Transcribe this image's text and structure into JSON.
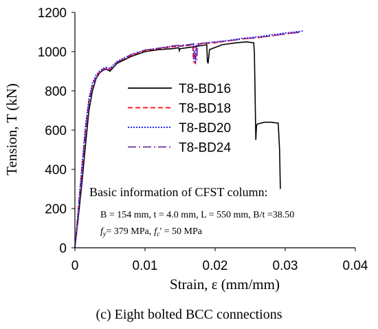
{
  "caption": "(c) Eight bolted BCC connections",
  "chart_data": {
    "type": "line",
    "title": "",
    "xlabel": "Strain, ε (mm/mm)",
    "ylabel": "Tension, T (kN)",
    "xlim": [
      0,
      0.04
    ],
    "ylim": [
      0,
      1200
    ],
    "x_ticks": [
      "0",
      "0.01",
      "0.02",
      "0.03",
      "0.04"
    ],
    "y_ticks": [
      "0",
      "200",
      "400",
      "600",
      "800",
      "1000",
      "1200"
    ],
    "grid": false,
    "legend_position": "center",
    "series": [
      {
        "name": "T8-BD16",
        "color": "#000000",
        "style": "solid",
        "x": [
          0,
          0.0005,
          0.001,
          0.0015,
          0.002,
          0.0025,
          0.003,
          0.0035,
          0.004,
          0.0045,
          0.005,
          0.006,
          0.008,
          0.01,
          0.012,
          0.014,
          0.0148,
          0.0149,
          0.015,
          0.017,
          0.0188,
          0.0189,
          0.019,
          0.0192,
          0.021,
          0.023,
          0.0245,
          0.0255,
          0.0256,
          0.0257,
          0.0258,
          0.0259,
          0.026,
          0.027,
          0.028,
          0.029,
          0.0292,
          0.0293
        ],
        "y": [
          0,
          160,
          330,
          520,
          700,
          800,
          860,
          890,
          905,
          910,
          900,
          940,
          975,
          1000,
          1010,
          1015,
          1020,
          1005,
          1015,
          1025,
          1035,
          950,
          940,
          1010,
          1035,
          1045,
          1050,
          1045,
          1000,
          800,
          550,
          620,
          630,
          640,
          640,
          635,
          500,
          300
        ]
      },
      {
        "name": "T8-BD18",
        "color": "#ff0000",
        "style": "dashed",
        "x": [
          0,
          0.0005,
          0.001,
          0.0015,
          0.002,
          0.0025,
          0.003,
          0.0035,
          0.004,
          0.0045,
          0.005,
          0.006,
          0.008,
          0.01,
          0.012,
          0.014,
          0.016,
          0.0168,
          0.0169,
          0.0172,
          0.0173,
          0.0175,
          0.018,
          0.02,
          0.022,
          0.024,
          0.026,
          0.028,
          0.03,
          0.032
        ],
        "y": [
          0,
          200,
          400,
          600,
          750,
          830,
          870,
          895,
          910,
          915,
          910,
          945,
          980,
          1005,
          1015,
          1025,
          1030,
          1035,
          950,
          940,
          1030,
          1035,
          1040,
          1045,
          1055,
          1065,
          1070,
          1080,
          1090,
          1100
        ]
      },
      {
        "name": "T8-BD20",
        "color": "#0000ff",
        "style": "dotted",
        "x": [
          0,
          0.0005,
          0.001,
          0.0015,
          0.002,
          0.0025,
          0.003,
          0.0035,
          0.004,
          0.0045,
          0.005,
          0.006,
          0.008,
          0.01,
          0.012,
          0.014,
          0.016,
          0.0169,
          0.017,
          0.0172,
          0.0173,
          0.0175,
          0.018,
          0.02,
          0.022,
          0.024,
          0.026,
          0.028,
          0.03,
          0.0325
        ],
        "y": [
          0,
          210,
          420,
          620,
          760,
          840,
          880,
          900,
          915,
          920,
          915,
          950,
          985,
          1008,
          1018,
          1028,
          1032,
          1038,
          960,
          950,
          1030,
          1040,
          1042,
          1050,
          1058,
          1068,
          1075,
          1085,
          1095,
          1105
        ]
      },
      {
        "name": "T8-BD24",
        "color": "#7030a0",
        "style": "dashdot",
        "x": [
          0,
          0.0005,
          0.001,
          0.0015,
          0.002,
          0.0025,
          0.003,
          0.0035,
          0.004,
          0.0045,
          0.005,
          0.006,
          0.008,
          0.01,
          0.012,
          0.014,
          0.016,
          0.017,
          0.0171,
          0.0174,
          0.0175,
          0.0178,
          0.018,
          0.02,
          0.022,
          0.024,
          0.026,
          0.028,
          0.03,
          0.032
        ],
        "y": [
          0,
          180,
          370,
          570,
          730,
          820,
          865,
          890,
          905,
          912,
          905,
          945,
          985,
          1008,
          1018,
          1030,
          1035,
          1040,
          960,
          955,
          1030,
          1040,
          1042,
          1048,
          1055,
          1065,
          1072,
          1080,
          1090,
          1098
        ]
      }
    ],
    "annotation": {
      "heading": "Basic information of CFST column:",
      "line1": "B = 154 mm, t = 4.0 mm, L = 550 mm, B/t =38.50",
      "line2_fy_sym": "f",
      "line2_fy_sub": "y",
      "line2_fy_val": "= 379 MPa,",
      "line2_fc_sym": "f",
      "line2_fc_sub": "c",
      "line2_fc_prime": "′",
      "line2_fc_val": "= 50 MPa"
    }
  }
}
